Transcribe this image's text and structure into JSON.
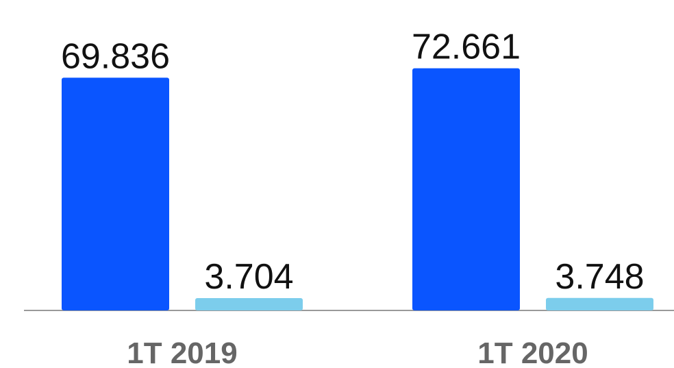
{
  "chart_data": {
    "type": "bar",
    "categories": [
      "1T 2019",
      "1T 2020"
    ],
    "series": [
      {
        "color": "#0a55ff",
        "values": [
          69.836,
          72.661
        ]
      },
      {
        "color": "#7ccdec",
        "values": [
          3.704,
          3.748
        ]
      }
    ],
    "ylim": [
      0,
      80
    ]
  }
}
